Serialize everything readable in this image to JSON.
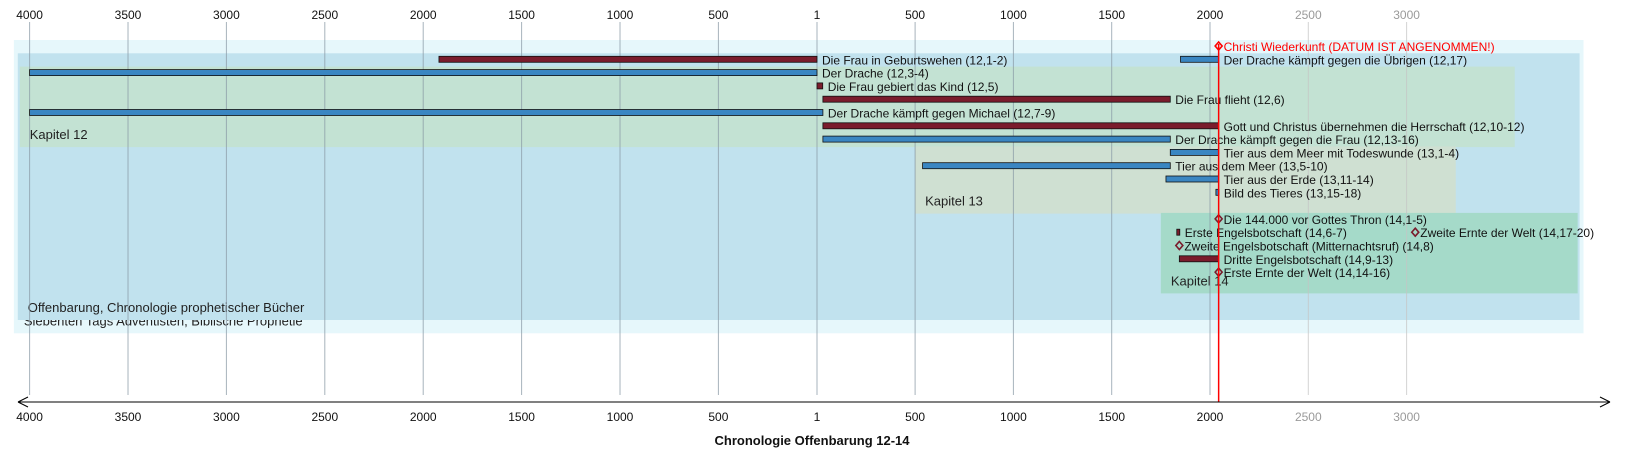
{
  "chart_data": {
    "type": "timeline",
    "title": "Chronologie Offenbarung 12-14",
    "axis": {
      "ticks": [
        {
          "value": -4000,
          "label": "4000"
        },
        {
          "value": -3500,
          "label": "3500"
        },
        {
          "value": -3000,
          "label": "3000"
        },
        {
          "value": -2500,
          "label": "2500"
        },
        {
          "value": -2000,
          "label": "2000"
        },
        {
          "value": -1500,
          "label": "1500"
        },
        {
          "value": -1000,
          "label": "1000"
        },
        {
          "value": -500,
          "label": "500"
        },
        {
          "value": 1,
          "label": "1"
        },
        {
          "value": 500,
          "label": "500"
        },
        {
          "value": 1000,
          "label": "1000"
        },
        {
          "value": 1500,
          "label": "1500"
        },
        {
          "value": 2000,
          "label": "2000"
        },
        {
          "value": 2500,
          "label": "2500"
        },
        {
          "value": 3000,
          "label": "3000"
        }
      ],
      "range": [
        -4080,
        3900
      ],
      "future_from": 2030
    },
    "marker": {
      "year": 2044,
      "label": "Christi Wiederkunft (DATUM IST ANGENOMMEN!)",
      "color": "#ff0000"
    },
    "groups": [
      {
        "label": "Siebenten Tags Adventisten, Biblische Prophetie",
        "start": -4080,
        "end": 3900,
        "row_start": 0,
        "row_end": 21,
        "color": "#e6f7fb"
      },
      {
        "label": "Offenbarung, Chronologie prophetischer Bücher",
        "start": -4060,
        "end": 3880,
        "row_start": 1,
        "row_end": 20,
        "color": "#c1e2ee"
      },
      {
        "label": "Kapitel 12",
        "start": -4050,
        "end": 3550,
        "row_start": 2,
        "row_end": 7,
        "color": "#c3e2d3"
      },
      {
        "label": "Kapitel 13",
        "start": 500,
        "end": 3250,
        "row_start": 8,
        "row_end": 12,
        "color": "#cfe0d2"
      },
      {
        "label": "Kapitel 14",
        "start": 1750,
        "end": 3870,
        "row_start": 13,
        "row_end": 18,
        "color": "#a5dac9"
      }
    ],
    "events": [
      {
        "label": "Christi Wiederkunft (DATUM IST ANGENOMMEN!)",
        "start": 2044,
        "end": 2044,
        "row": 0,
        "kind": "point",
        "color": "#ff0000"
      },
      {
        "label": "Die Frau in Geburtswehen (12,1-2)",
        "start": -1920,
        "end": 1,
        "row": 1,
        "kind": "bar",
        "color": "#7a1c2c"
      },
      {
        "label": "Der Drache kämpft gegen die Übrigen (12,17)",
        "start": 1850,
        "end": 2044,
        "row": 1,
        "kind": "bar",
        "color": "#3a86c2"
      },
      {
        "label": "Der Drache (12,3-4)",
        "start": -4000,
        "end": 1,
        "row": 2,
        "kind": "bar",
        "color": "#3a86c2"
      },
      {
        "label": "Die Frau gebiert das Kind (12,5)",
        "start": 1,
        "end": 30,
        "row": 3,
        "kind": "bar",
        "color": "#7a1c2c"
      },
      {
        "label": "Die Frau flieht (12,6)",
        "start": 31,
        "end": 1798,
        "row": 4,
        "kind": "bar",
        "color": "#7a1c2c"
      },
      {
        "label": "Der Drache kämpft gegen Michael (12,7-9)",
        "start": -4000,
        "end": 31,
        "row": 5,
        "kind": "bar",
        "color": "#3a86c2"
      },
      {
        "label": "Gott und Christus übernehmen die Herrschaft (12,10-12)",
        "start": 31,
        "end": 2044,
        "row": 6,
        "kind": "bar",
        "color": "#7a1c2c"
      },
      {
        "label": "Der Drache kämpft gegen die Frau (12,13-16)",
        "start": 31,
        "end": 1798,
        "row": 7,
        "kind": "bar",
        "color": "#3a86c2"
      },
      {
        "label": "Tier aus dem Meer mit Todeswunde (13,1-4)",
        "start": 1798,
        "end": 2044,
        "row": 8,
        "kind": "bar",
        "color": "#3a86c2"
      },
      {
        "label": "Tier aus dem Meer (13,5-10)",
        "start": 538,
        "end": 1798,
        "row": 9,
        "kind": "bar",
        "color": "#3a86c2"
      },
      {
        "label": "Tier aus der Erde (13,11-14)",
        "start": 1776,
        "end": 2044,
        "row": 10,
        "kind": "bar",
        "color": "#3a86c2"
      },
      {
        "label": "Bild des Tieres (13,15-18)",
        "start": 2030,
        "end": 2044,
        "row": 11,
        "kind": "bar",
        "color": "#3a86c2"
      },
      {
        "label": "Die 144.000 vor Gottes Thron (14,1-5)",
        "start": 2044,
        "end": 2044,
        "row": 13,
        "kind": "point",
        "color": "#7a1c2c"
      },
      {
        "label": "Erste Engelsbotschaft (14,6-7)",
        "start": 1831,
        "end": 1844,
        "row": 14,
        "kind": "bar",
        "color": "#7a1c2c"
      },
      {
        "label": "Zweite Ernte der Welt (14,17-20)",
        "start": 3044,
        "end": 3044,
        "row": 14,
        "kind": "point",
        "color": "#7a1c2c"
      },
      {
        "label": "Zweite Engelsbotschaft (Mitternachtsruf) (14,8)",
        "start": 1844,
        "end": 1844,
        "row": 15,
        "kind": "point",
        "color": "#7a1c2c"
      },
      {
        "label": "Dritte Engelsbotschaft (14,9-13)",
        "start": 1844,
        "end": 2044,
        "row": 16,
        "kind": "bar",
        "color": "#7a1c2c"
      },
      {
        "label": "Erste Ernte der Welt (14,14-16)",
        "start": 2044,
        "end": 2044,
        "row": 17,
        "kind": "point",
        "color": "#7a1c2c"
      }
    ]
  }
}
